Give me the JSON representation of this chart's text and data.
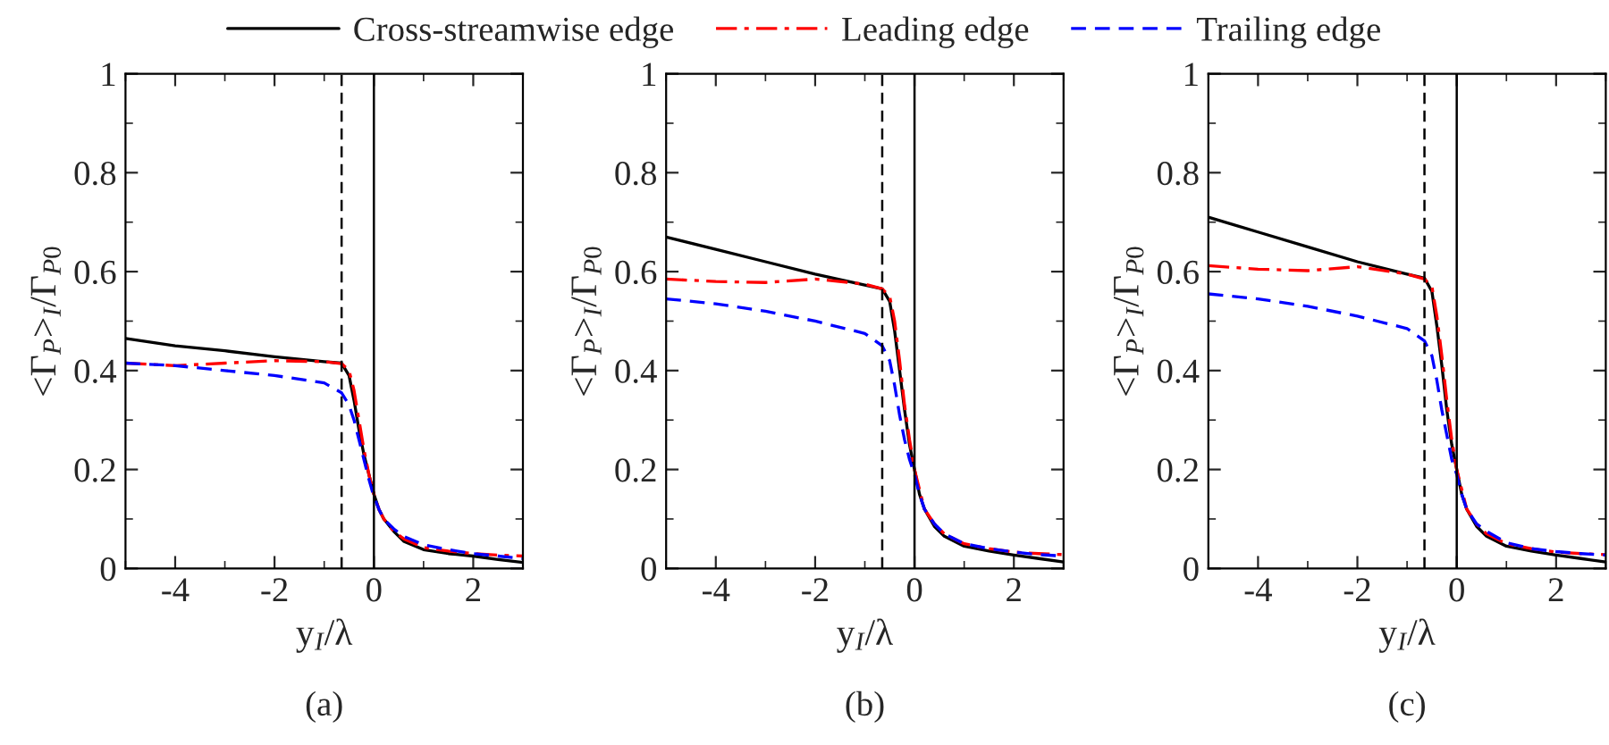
{
  "chart_data": [
    {
      "type": "line",
      "xlabel": "y$_{I}$/λ",
      "ylabel": "<Γ$_{P}$>$_{I}$/Γ$_{P0}$",
      "annotations": [
        "(a)"
      ],
      "legend": "top",
      "xlim": [
        -5,
        3
      ],
      "ylim": [
        0,
        1
      ],
      "xticks": [
        -4,
        -2,
        0,
        2
      ],
      "yticks": [
        0,
        0.2,
        0.4,
        0.6,
        0.8,
        1
      ],
      "grid": false,
      "x": [
        -5,
        -4,
        -3,
        -2,
        -1,
        -0.65,
        -0.5,
        -0.4,
        -0.3,
        -0.2,
        -0.1,
        0,
        0.1,
        0.2,
        0.4,
        0.6,
        1,
        1.5,
        2,
        2.5,
        3
      ],
      "ref_lines": [
        {
          "axis": "x",
          "value": -0.65,
          "color": "#000000",
          "line_style": "dashed"
        },
        {
          "axis": "x",
          "value": 0,
          "color": "#000000",
          "line_style": "solid"
        }
      ],
      "series": [
        {
          "name": "Cross-streamwise edge",
          "color": "#000000",
          "line_style": "solid",
          "values": [
            0.465,
            0.45,
            0.44,
            0.428,
            0.418,
            0.415,
            0.39,
            0.34,
            0.28,
            0.23,
            0.19,
            0.15,
            0.12,
            0.1,
            0.075,
            0.055,
            0.038,
            0.03,
            0.025,
            0.018,
            0.012
          ]
        },
        {
          "name": "Leading edge",
          "color": "#ff0000",
          "line_style": "dashdot",
          "values": [
            0.415,
            0.41,
            0.415,
            0.42,
            0.418,
            0.414,
            0.4,
            0.36,
            0.3,
            0.24,
            0.19,
            0.15,
            0.12,
            0.1,
            0.075,
            0.06,
            0.042,
            0.035,
            0.03,
            0.027,
            0.025
          ]
        },
        {
          "name": "Trailing edge",
          "color": "#0000ff",
          "line_style": "dashed",
          "values": [
            0.415,
            0.41,
            0.4,
            0.39,
            0.375,
            0.355,
            0.33,
            0.3,
            0.26,
            0.22,
            0.18,
            0.145,
            0.12,
            0.1,
            0.08,
            0.065,
            0.048,
            0.038,
            0.03,
            0.025,
            0.02
          ]
        }
      ]
    },
    {
      "type": "line",
      "xlabel": "y$_{I}$/λ",
      "ylabel": "<Γ$_{P}$>$_{I}$/Γ$_{P0}$",
      "annotations": [
        "(b)"
      ],
      "xlim": [
        -5,
        3
      ],
      "ylim": [
        0,
        1
      ],
      "xticks": [
        -4,
        -2,
        0,
        2
      ],
      "yticks": [
        0,
        0.2,
        0.4,
        0.6,
        0.8,
        1
      ],
      "grid": false,
      "x": [
        -5,
        -4,
        -3,
        -2,
        -1,
        -0.65,
        -0.5,
        -0.4,
        -0.3,
        -0.2,
        -0.1,
        0,
        0.1,
        0.2,
        0.4,
        0.6,
        1,
        1.5,
        2,
        2.5,
        3
      ],
      "ref_lines": [
        {
          "axis": "x",
          "value": -0.65,
          "color": "#000000",
          "line_style": "dashed"
        },
        {
          "axis": "x",
          "value": 0,
          "color": "#000000",
          "line_style": "solid"
        }
      ],
      "series": [
        {
          "color": "#000000",
          "line_style": "solid",
          "values": [
            0.67,
            0.645,
            0.62,
            0.595,
            0.573,
            0.565,
            0.54,
            0.48,
            0.4,
            0.32,
            0.25,
            0.2,
            0.15,
            0.12,
            0.085,
            0.065,
            0.045,
            0.035,
            0.027,
            0.02,
            0.013
          ]
        },
        {
          "color": "#ff0000",
          "line_style": "dashdot",
          "values": [
            0.585,
            0.58,
            0.578,
            0.585,
            0.575,
            0.565,
            0.55,
            0.5,
            0.42,
            0.33,
            0.26,
            0.2,
            0.16,
            0.12,
            0.09,
            0.07,
            0.05,
            0.04,
            0.033,
            0.03,
            0.028
          ]
        },
        {
          "color": "#0000ff",
          "line_style": "dashed",
          "values": [
            0.545,
            0.535,
            0.52,
            0.5,
            0.475,
            0.45,
            0.42,
            0.37,
            0.31,
            0.26,
            0.22,
            0.19,
            0.15,
            0.12,
            0.09,
            0.07,
            0.05,
            0.04,
            0.033,
            0.028,
            0.025
          ]
        }
      ]
    },
    {
      "type": "line",
      "xlabel": "y$_{I}$/λ",
      "ylabel": "<Γ$_{P}$>$_{I}$/Γ$_{P0}$",
      "annotations": [
        "(c)"
      ],
      "xlim": [
        -5,
        3
      ],
      "ylim": [
        0,
        1
      ],
      "xticks": [
        -4,
        -2,
        0,
        2
      ],
      "yticks": [
        0,
        0.2,
        0.4,
        0.6,
        0.8,
        1
      ],
      "grid": false,
      "x": [
        -5,
        -4,
        -3,
        -2,
        -1,
        -0.65,
        -0.5,
        -0.4,
        -0.3,
        -0.2,
        -0.1,
        0,
        0.1,
        0.2,
        0.4,
        0.6,
        1,
        1.5,
        2,
        2.5,
        3
      ],
      "ref_lines": [
        {
          "axis": "x",
          "value": -0.65,
          "color": "#000000",
          "line_style": "dashed"
        },
        {
          "axis": "x",
          "value": 0,
          "color": "#000000",
          "line_style": "solid"
        }
      ],
      "series": [
        {
          "color": "#000000",
          "line_style": "solid",
          "values": [
            0.71,
            0.68,
            0.65,
            0.62,
            0.595,
            0.587,
            0.56,
            0.49,
            0.41,
            0.32,
            0.25,
            0.2,
            0.15,
            0.12,
            0.085,
            0.065,
            0.045,
            0.035,
            0.027,
            0.02,
            0.013
          ]
        },
        {
          "color": "#ff0000",
          "line_style": "dashdot",
          "values": [
            0.612,
            0.605,
            0.602,
            0.61,
            0.595,
            0.585,
            0.57,
            0.51,
            0.43,
            0.34,
            0.26,
            0.2,
            0.16,
            0.12,
            0.09,
            0.07,
            0.05,
            0.04,
            0.033,
            0.03,
            0.028
          ]
        },
        {
          "color": "#0000ff",
          "line_style": "dashed",
          "values": [
            0.555,
            0.545,
            0.53,
            0.51,
            0.485,
            0.46,
            0.43,
            0.38,
            0.32,
            0.27,
            0.22,
            0.19,
            0.15,
            0.12,
            0.09,
            0.075,
            0.052,
            0.04,
            0.034,
            0.03,
            0.027
          ]
        }
      ]
    }
  ]
}
